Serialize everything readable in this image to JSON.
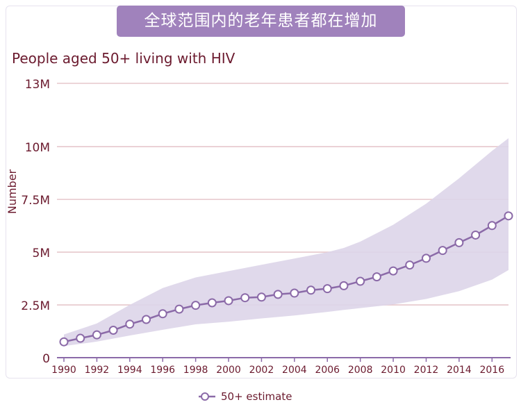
{
  "header": {
    "banner_title": "全球范围内的老年患者都在增加",
    "chart_title": "People aged 50+ living with HIV"
  },
  "colors": {
    "banner_bg": "#a082bc",
    "band_fill": "#ddd5e9",
    "line": "#8b6aa8",
    "grid": "#e6c7cc",
    "text": "#6b1a2e"
  },
  "chart_data": {
    "type": "line",
    "title": "People aged 50+ living with HIV",
    "xlabel": "",
    "ylabel": "Number",
    "xlim": [
      1990,
      2017
    ],
    "ylim": [
      0,
      13000000
    ],
    "y_ticks": [
      {
        "value": 0,
        "label": "0"
      },
      {
        "value": 2500000,
        "label": "2.5M"
      },
      {
        "value": 5000000,
        "label": "5M"
      },
      {
        "value": 7500000,
        "label": "7.5M"
      },
      {
        "value": 10000000,
        "label": "10M"
      },
      {
        "value": 13000000,
        "label": "13M"
      }
    ],
    "x_ticks": [
      1990,
      1992,
      1994,
      1996,
      1998,
      2000,
      2002,
      2004,
      2006,
      2008,
      2010,
      2012,
      2014,
      2016
    ],
    "grid": "horizontal",
    "legend_position": "bottom",
    "series": [
      {
        "name": "50+ estimate",
        "x": [
          1990,
          1991,
          1992,
          1993,
          1994,
          1995,
          1996,
          1997,
          1998,
          1999,
          2000,
          2001,
          2002,
          2003,
          2004,
          2005,
          2006,
          2007,
          2008,
          2009,
          2010,
          2011,
          2012,
          2013,
          2014,
          2015,
          2016,
          2017
        ],
        "values": [
          750000,
          920000,
          1080000,
          1300000,
          1590000,
          1810000,
          2080000,
          2300000,
          2480000,
          2600000,
          2700000,
          2840000,
          2870000,
          3000000,
          3060000,
          3200000,
          3270000,
          3410000,
          3620000,
          3830000,
          4110000,
          4390000,
          4710000,
          5080000,
          5450000,
          5810000,
          6260000,
          6720000
        ]
      }
    ],
    "uncertainty_band": {
      "x": [
        1990,
        1992,
        1994,
        1996,
        1998,
        2000,
        2002,
        2004,
        2006,
        2007,
        2008,
        2010,
        2012,
        2014,
        2016,
        2017
      ],
      "upper": [
        1100000,
        1620000,
        2500000,
        3300000,
        3800000,
        4100000,
        4400000,
        4700000,
        5000000,
        5200000,
        5500000,
        6300000,
        7300000,
        8500000,
        9800000,
        10400000
      ],
      "lower": [
        550000,
        760000,
        1050000,
        1320000,
        1580000,
        1700000,
        1860000,
        2000000,
        2170000,
        2260000,
        2350000,
        2520000,
        2780000,
        3150000,
        3700000,
        4150000
      ]
    }
  }
}
